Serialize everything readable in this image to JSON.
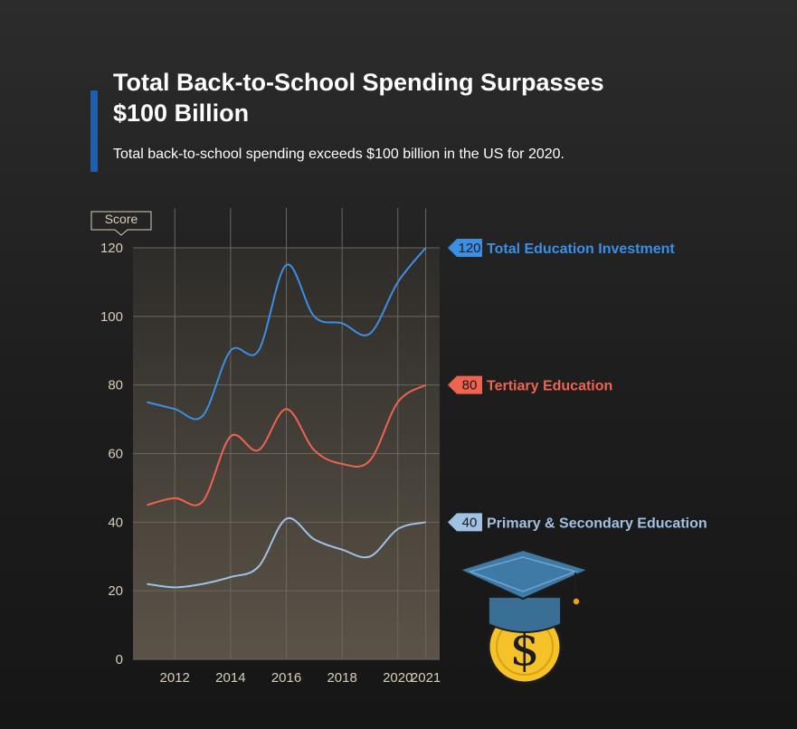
{
  "header": {
    "title": "Total Back-to-School Spending Surpasses $100 Billion",
    "subtitle": "Total back-to-school spending exceeds $100 billion in the US for 2020."
  },
  "chart_data": {
    "type": "line",
    "ylabel": "Score",
    "ylim": [
      0,
      120
    ],
    "yticks": [
      0,
      20,
      40,
      60,
      80,
      100,
      120
    ],
    "xlim": [
      2010.5,
      2021.5
    ],
    "xticks": [
      2012,
      2014,
      2016,
      2018,
      2020,
      2021
    ],
    "grid": true,
    "x": [
      2011,
      2012,
      2013,
      2014,
      2015,
      2016,
      2017,
      2018,
      2019,
      2020,
      2021
    ],
    "series": [
      {
        "name": "Total Education Investment",
        "color": "#3b8fe4",
        "values": [
          75,
          73,
          71,
          90,
          90,
          115,
          100,
          98,
          95,
          110,
          120
        ],
        "end_label": "120"
      },
      {
        "name": "Tertiary Education",
        "color": "#ef6350",
        "values": [
          45,
          47,
          46,
          65,
          61,
          73,
          61,
          57,
          58,
          75,
          80
        ],
        "end_label": "80"
      },
      {
        "name": "Primary & Secondary Education",
        "color": "#9fc1e4",
        "values": [
          22,
          21,
          22,
          24,
          27,
          41,
          35,
          32,
          30,
          38,
          40
        ],
        "end_label": "40"
      }
    ]
  },
  "decoration": {
    "icon": "graduation-cap-dollar-coin"
  }
}
